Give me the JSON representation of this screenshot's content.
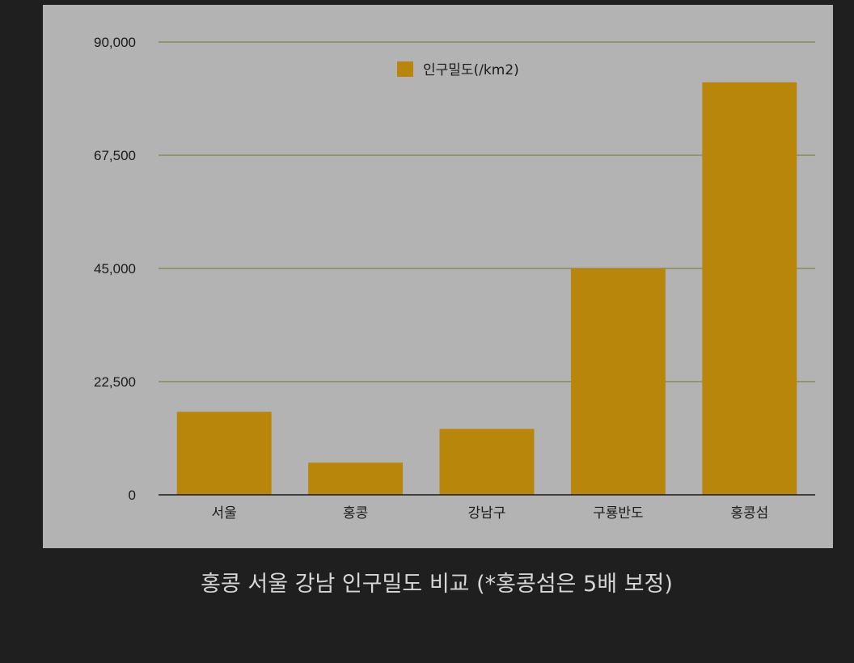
{
  "caption": "홍콩 서울 강남 인구밀도 비교 (*홍콩섬은 5배 보정)",
  "colors": {
    "bar": "#b8860b",
    "grid": "#8a8a5a",
    "baseline": "#1a1a1a",
    "panel": "#b3b3b3",
    "page": "#1f1f1f"
  },
  "chart_data": {
    "type": "bar",
    "categories": [
      "서울",
      "홍콩",
      "강남구",
      "구룡반도",
      "홍콩섬"
    ],
    "series": [
      {
        "name": "인구밀도(/km2)",
        "values": [
          16500,
          6400,
          13100,
          45000,
          82000
        ]
      }
    ],
    "y_ticks": [
      0,
      22500,
      45000,
      67500,
      90000
    ],
    "y_tick_labels": [
      "0",
      "22,500",
      "45,000",
      "67,500",
      "90,000"
    ],
    "ylim": [
      0,
      90000
    ],
    "grid": true,
    "legend_position": "top-center"
  }
}
